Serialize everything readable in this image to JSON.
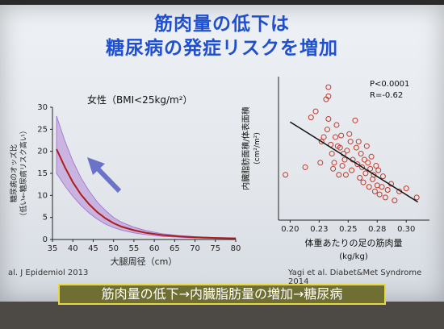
{
  "slide": {
    "title_line1": "筋肉量の低下は",
    "title_line2": "糖尿病の発症リスクを増加",
    "banner": "筋肉量の低下→内臓脂肪量の増加→糖尿病",
    "citation_left": "al. J Epidemiol 2013",
    "citation_right": "Yagi et al. Diabet&Met Syndrome 2014"
  },
  "chart_data": [
    {
      "type": "line",
      "annotation": "女性（BMI<25kg/m²）",
      "xlabel": "大腿周径（cm）",
      "ylabel": "糖尿病のオッズ比\n（低い←糖尿病リスク高い）",
      "xlim": [
        35,
        80
      ],
      "ylim": [
        0,
        30
      ],
      "x_ticks": [
        "35",
        "40",
        "45",
        "50",
        "55",
        "60",
        "65",
        "70",
        "75",
        "80"
      ],
      "y_ticks": [
        "0",
        "5",
        "10",
        "15",
        "20",
        "25",
        "30"
      ],
      "series": [
        {
          "x": [
            36,
            38,
            40,
            42,
            44,
            46,
            48,
            50,
            52,
            55,
            58,
            62,
            66,
            70,
            75,
            80
          ],
          "y": [
            20.5,
            16.5,
            13.0,
            10.2,
            8.0,
            6.2,
            4.8,
            3.7,
            2.9,
            2.1,
            1.5,
            1.0,
            0.7,
            0.5,
            0.35,
            0.25
          ],
          "lower": [
            15.0,
            12.2,
            9.8,
            7.7,
            6.0,
            4.6,
            3.5,
            2.7,
            2.1,
            1.5,
            1.1,
            0.7,
            0.5,
            0.35,
            0.25,
            0.15
          ],
          "upper": [
            28.0,
            22.5,
            17.8,
            14.0,
            11.0,
            8.5,
            6.6,
            5.0,
            3.9,
            2.8,
            2.0,
            1.3,
            0.9,
            0.65,
            0.45,
            0.35
          ]
        }
      ],
      "line_color": "#b01c1c",
      "band_color": "#b38ad6",
      "arrow_color": "#6b73c9"
    },
    {
      "type": "scatter",
      "annotation_p": "P<0.0001",
      "annotation_r": "R=-0.62",
      "xlabel": "体重あたりの足の筋肉量\n(kg/kg)",
      "ylabel": "内臓脂肪面積/体表面積\n(cm²/m²)",
      "xlim": [
        0.19,
        0.32
      ],
      "ylim": [
        0,
        95
      ],
      "x_ticks": [
        "0.20",
        "0.23",
        "0.25",
        "0.28",
        "0.30"
      ],
      "x_tick_values": [
        0.2,
        0.225,
        0.25,
        0.275,
        0.3
      ],
      "points": [
        [
          0.196,
          30
        ],
        [
          0.213,
          35
        ],
        [
          0.218,
          68
        ],
        [
          0.222,
          72
        ],
        [
          0.226,
          38
        ],
        [
          0.227,
          52
        ],
        [
          0.229,
          55
        ],
        [
          0.231,
          80
        ],
        [
          0.232,
          60
        ],
        [
          0.233,
          67
        ],
        [
          0.233,
          82
        ],
        [
          0.233,
          88
        ],
        [
          0.235,
          50
        ],
        [
          0.236,
          44
        ],
        [
          0.237,
          34
        ],
        [
          0.238,
          38
        ],
        [
          0.239,
          55
        ],
        [
          0.24,
          63
        ],
        [
          0.241,
          49
        ],
        [
          0.242,
          30
        ],
        [
          0.243,
          48
        ],
        [
          0.244,
          56
        ],
        [
          0.245,
          36
        ],
        [
          0.246,
          44
        ],
        [
          0.247,
          40
        ],
        [
          0.248,
          30
        ],
        [
          0.249,
          46
        ],
        [
          0.251,
          57
        ],
        [
          0.252,
          52
        ],
        [
          0.253,
          33
        ],
        [
          0.254,
          40
        ],
        [
          0.256,
          66
        ],
        [
          0.257,
          48
        ],
        [
          0.258,
          37
        ],
        [
          0.259,
          52
        ],
        [
          0.26,
          28
        ],
        [
          0.261,
          44
        ],
        [
          0.262,
          35
        ],
        [
          0.263,
          25
        ],
        [
          0.264,
          40
        ],
        [
          0.265,
          31
        ],
        [
          0.266,
          49
        ],
        [
          0.267,
          38
        ],
        [
          0.268,
          22
        ],
        [
          0.269,
          34
        ],
        [
          0.27,
          42
        ],
        [
          0.271,
          27
        ],
        [
          0.272,
          30
        ],
        [
          0.273,
          19
        ],
        [
          0.274,
          36
        ],
        [
          0.275,
          23
        ],
        [
          0.276,
          33
        ],
        [
          0.277,
          17
        ],
        [
          0.279,
          22
        ],
        [
          0.28,
          29
        ],
        [
          0.282,
          15
        ],
        [
          0.284,
          20
        ],
        [
          0.287,
          24
        ],
        [
          0.29,
          13
        ],
        [
          0.294,
          19
        ],
        [
          0.3,
          21
        ],
        [
          0.309,
          15
        ]
      ],
      "trend": {
        "x": [
          0.2,
          0.31
        ],
        "y": [
          65,
          12
        ]
      },
      "point_color": "#c0392b",
      "line_color": "#111111"
    }
  ]
}
